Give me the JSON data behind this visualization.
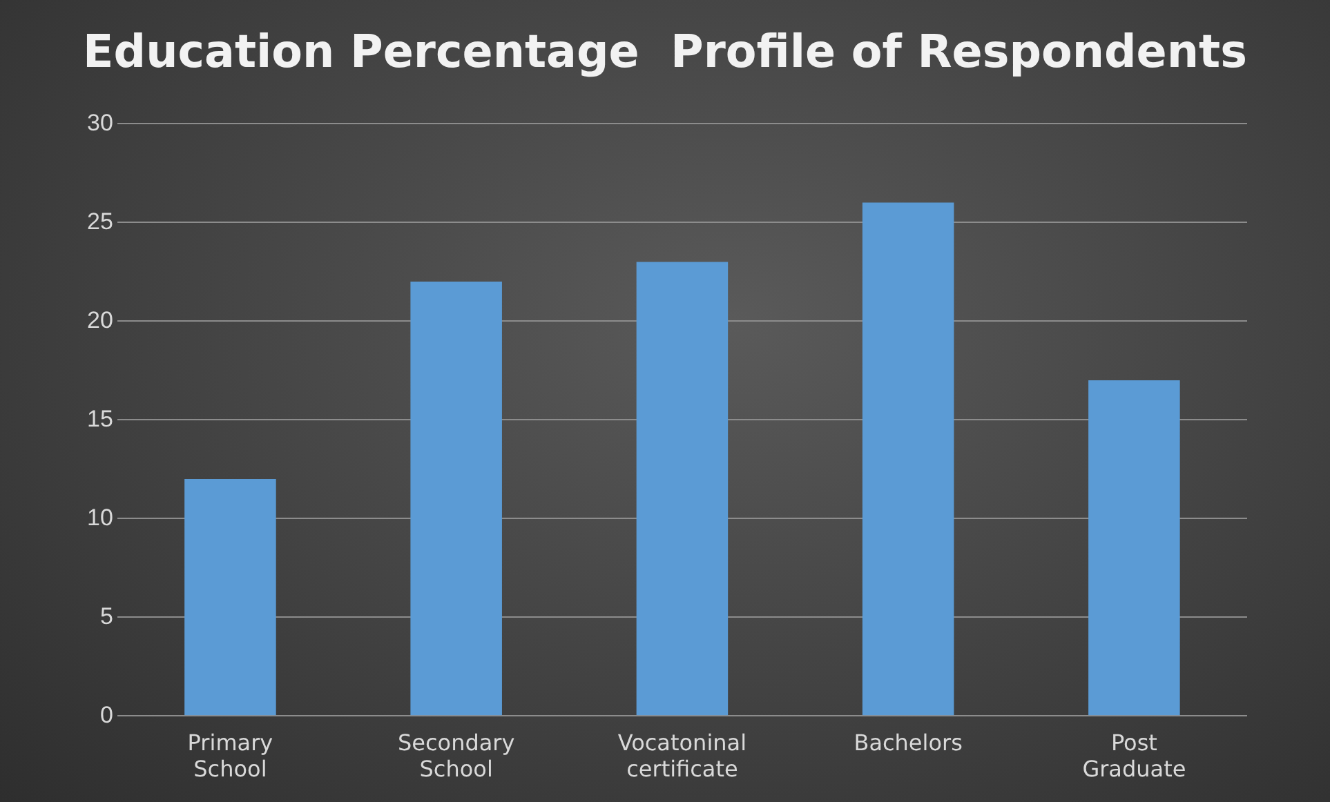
{
  "chart_data": {
    "type": "bar",
    "title": "Education Percentage  Profile of Respondents",
    "categories": [
      "Primary School",
      "Secondary School",
      "Vocatoninal certificate",
      "Bachelors",
      "Post Graduate"
    ],
    "values": [
      12,
      22,
      23,
      26,
      17
    ],
    "color": "#5b9bd5",
    "ylim": [
      0,
      30
    ],
    "yticks": [
      0,
      5,
      10,
      15,
      20,
      25,
      30
    ],
    "grid": "y",
    "legend": false
  }
}
